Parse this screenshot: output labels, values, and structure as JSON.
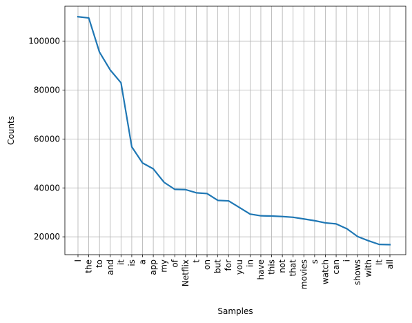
{
  "chart_data": {
    "type": "line",
    "title": "",
    "xlabel": "Samples",
    "ylabel": "Counts",
    "categories": [
      "I",
      "the",
      "to",
      "and",
      "it",
      "is",
      "a",
      "app",
      "my",
      "of",
      "Netflix",
      "t",
      "on",
      "but",
      "for",
      "you",
      "in",
      "have",
      "this",
      "not",
      "that",
      "movies",
      "s",
      "watch",
      "can",
      "i",
      "shows",
      "with",
      "It",
      "all"
    ],
    "series": [
      {
        "values": [
          110000,
          109500,
          95500,
          88200,
          83000,
          56800,
          50200,
          47800,
          42300,
          39400,
          39300,
          38000,
          37700,
          34900,
          34700,
          32000,
          29300,
          28600,
          28500,
          28300,
          28000,
          27300,
          26600,
          25700,
          25300,
          23300,
          20100,
          18400,
          16900,
          16800
        ],
        "color": "#1f77b4"
      }
    ],
    "yticks": [
      20000,
      40000,
      60000,
      80000,
      100000
    ],
    "ylim": [
      12700,
      114300
    ],
    "grid": true,
    "legend": "none"
  }
}
